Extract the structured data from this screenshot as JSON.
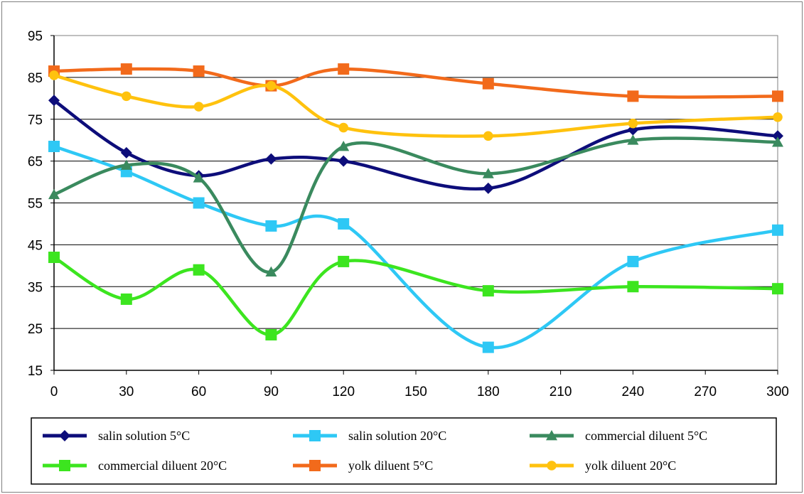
{
  "chart_data": {
    "type": "line",
    "title": "",
    "xlabel": "",
    "ylabel": "",
    "xlim": [
      0,
      300
    ],
    "ylim": [
      15,
      95
    ],
    "x_ticks": [
      0,
      30,
      60,
      90,
      120,
      150,
      180,
      210,
      240,
      270,
      300
    ],
    "y_ticks": [
      15,
      25,
      35,
      45,
      55,
      65,
      75,
      85,
      95
    ],
    "x_tick_labels": [
      "0",
      "30",
      "60",
      "90",
      "120",
      "150",
      "180",
      "210",
      "240",
      "270",
      "300"
    ],
    "y_tick_labels": [
      "15",
      "25",
      "35",
      "45",
      "55",
      "65",
      "75",
      "85",
      "95"
    ],
    "grid": "horizontal",
    "legend_position": "bottom",
    "smooth": true,
    "series": [
      {
        "name": "salin solution 5°C",
        "color": "#0d0d7a",
        "marker": "diamond",
        "points": [
          [
            0,
            79.5
          ],
          [
            30,
            67
          ],
          [
            60,
            61.5
          ],
          [
            90,
            65.5
          ],
          [
            120,
            65
          ],
          [
            180,
            58.5
          ],
          [
            240,
            72.5
          ],
          [
            300,
            71
          ]
        ]
      },
      {
        "name": "salin solution 20°C",
        "color": "#2ec8f5",
        "marker": "square",
        "points": [
          [
            0,
            68.5
          ],
          [
            30,
            62.5
          ],
          [
            60,
            55
          ],
          [
            90,
            49.5
          ],
          [
            120,
            50
          ],
          [
            180,
            20.5
          ],
          [
            240,
            41
          ],
          [
            300,
            48.5
          ]
        ]
      },
      {
        "name": "commercial diluent 5°C",
        "color": "#3a8a5e",
        "marker": "triangle",
        "points": [
          [
            0,
            57
          ],
          [
            30,
            64
          ],
          [
            60,
            61
          ],
          [
            90,
            38.5
          ],
          [
            120,
            68.5
          ],
          [
            180,
            62
          ],
          [
            240,
            70
          ],
          [
            300,
            69.5
          ]
        ]
      },
      {
        "name": "commercial diluent 20°C",
        "color": "#3ce51f",
        "marker": "square",
        "points": [
          [
            0,
            42
          ],
          [
            30,
            32
          ],
          [
            60,
            39
          ],
          [
            90,
            23.5
          ],
          [
            120,
            41
          ],
          [
            180,
            34
          ],
          [
            240,
            35
          ],
          [
            300,
            34.5
          ]
        ]
      },
      {
        "name": "yolk diluent 5°C",
        "color": "#f26a1b",
        "marker": "square",
        "points": [
          [
            0,
            86.5
          ],
          [
            30,
            87
          ],
          [
            60,
            86.5
          ],
          [
            90,
            83
          ],
          [
            120,
            87
          ],
          [
            180,
            83.5
          ],
          [
            240,
            80.5
          ],
          [
            300,
            80.5
          ]
        ]
      },
      {
        "name": "yolk diluent 20°C",
        "color": "#ffc20e",
        "marker": "circle",
        "points": [
          [
            0,
            85.5
          ],
          [
            30,
            80.5
          ],
          [
            60,
            78
          ],
          [
            90,
            83
          ],
          [
            120,
            73
          ],
          [
            180,
            71
          ],
          [
            240,
            74
          ],
          [
            300,
            75.5
          ]
        ]
      }
    ]
  }
}
